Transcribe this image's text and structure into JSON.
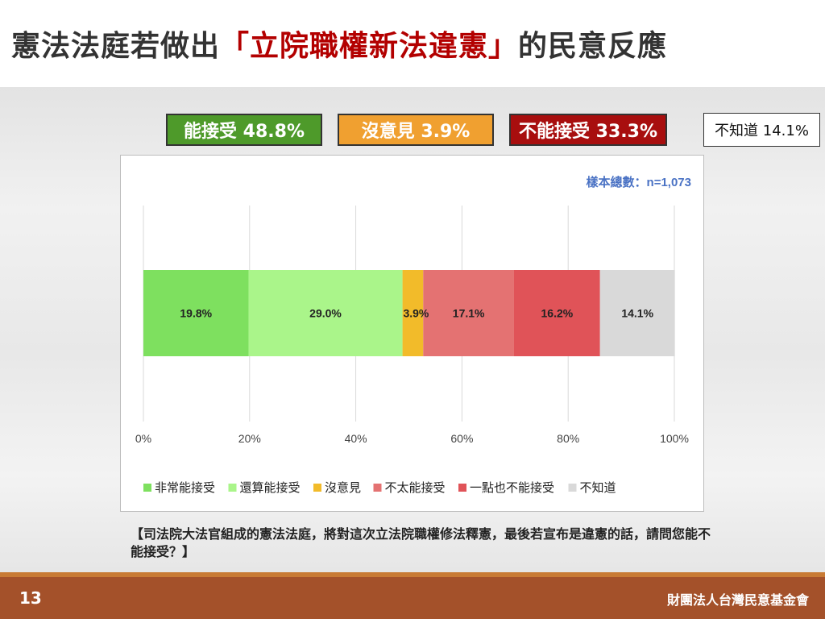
{
  "header": {
    "title_prefix": "憲法法庭若做出",
    "title_highlight": "「立院職權新法違憲」",
    "title_suffix": "的民意反應"
  },
  "summary": [
    {
      "label": "能接受 48.8%",
      "color": "#4e9a2a"
    },
    {
      "label": "沒意見 3.9%",
      "color": "#f0a030"
    },
    {
      "label": "不能接受 33.3%",
      "color": "#a80e0e"
    },
    {
      "label": "不知道 14.1%",
      "color": "#ffffff"
    }
  ],
  "chart_data": {
    "type": "bar",
    "orientation": "horizontal-stacked",
    "sample_note": "樣本總數：n=1,073",
    "categories": [
      ""
    ],
    "series": [
      {
        "name": "非常能接受",
        "values": [
          19.8
        ],
        "label": "19.8%",
        "color": "#7ee05f"
      },
      {
        "name": "還算能接受",
        "values": [
          29.0
        ],
        "label": "29.0%",
        "color": "#aaf58a"
      },
      {
        "name": "沒意見",
        "values": [
          3.9
        ],
        "label": "3.9%",
        "color": "#f2bb2a"
      },
      {
        "name": "不太能接受",
        "values": [
          17.1
        ],
        "label": "17.1%",
        "color": "#e47272"
      },
      {
        "name": "一點也不能接受",
        "values": [
          16.2
        ],
        "label": "16.2%",
        "color": "#e05358"
      },
      {
        "name": "不知道",
        "values": [
          14.1
        ],
        "label": "14.1%",
        "color": "#d9d9d9"
      }
    ],
    "xlim": [
      0,
      100
    ],
    "ticks": [
      "0%",
      "20%",
      "40%",
      "60%",
      "80%",
      "100%"
    ],
    "grid": true,
    "legend_position": "bottom"
  },
  "question": "【司法院大法官組成的憲法法庭，將對這次立法院職權修法釋憲，最後若宣布是違憲的話，請問您能不能接受？】",
  "footer": {
    "page_number": "13",
    "organization": "財團法人台灣民意基金會"
  }
}
